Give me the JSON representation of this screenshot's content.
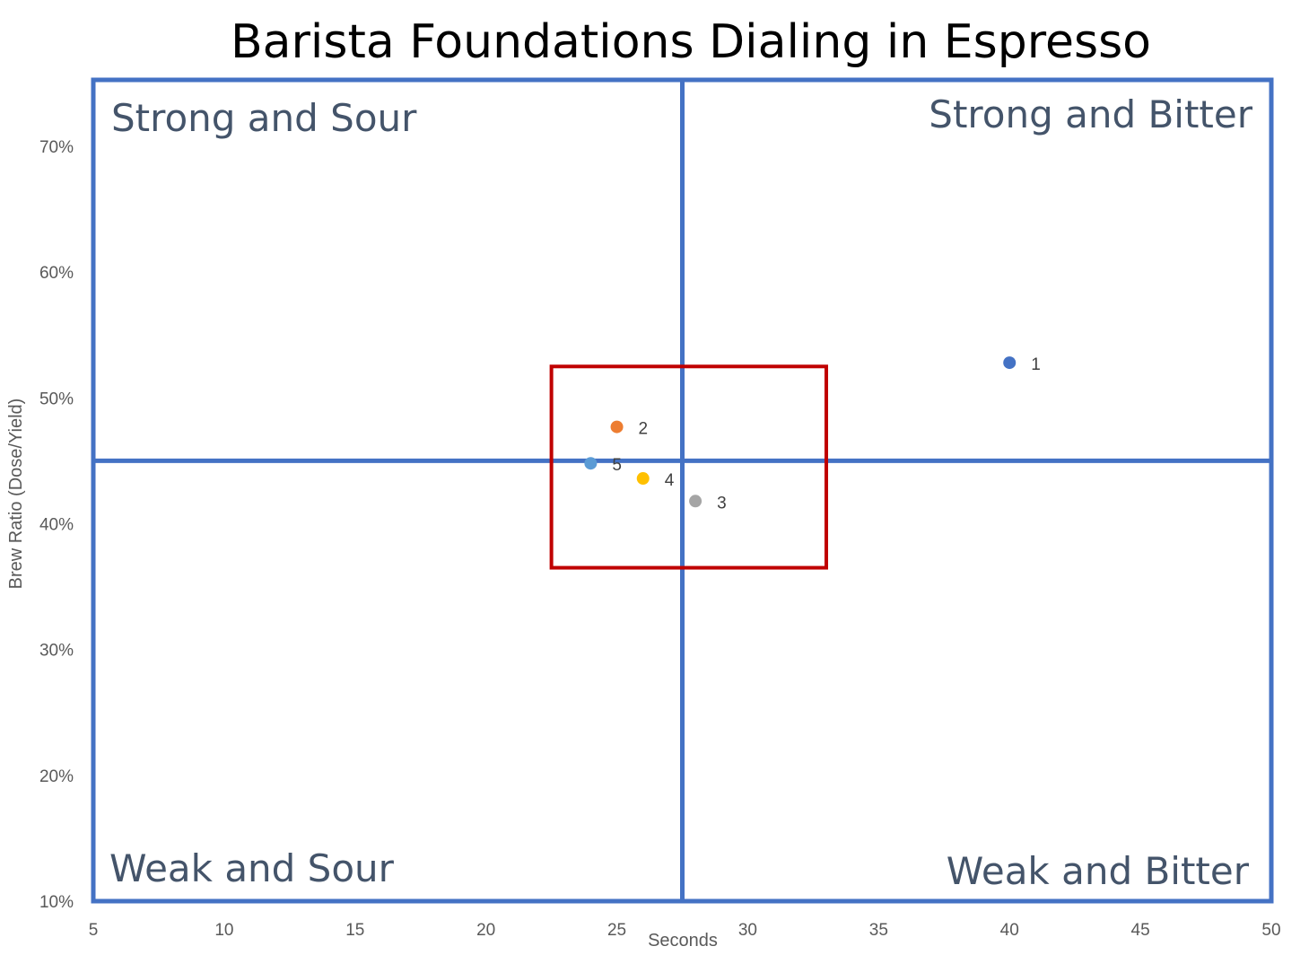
{
  "chart_data": {
    "type": "scatter",
    "title": "Barista Foundations Dialing in Espresso",
    "xlabel": "Seconds",
    "ylabel": "Brew Ratio (Dose/Yield)",
    "xlim": [
      5,
      50
    ],
    "ylim": [
      10,
      75
    ],
    "x_ticks": [
      5,
      10,
      15,
      20,
      25,
      30,
      35,
      40,
      45,
      50
    ],
    "x_tick_labels": [
      "5",
      "10",
      "15",
      "20",
      "25",
      "30",
      "35",
      "40",
      "45",
      "50"
    ],
    "y_ticks": [
      10,
      20,
      30,
      40,
      50,
      60,
      70
    ],
    "y_tick_labels": [
      "10%",
      "20%",
      "30%",
      "40%",
      "50%",
      "60%",
      "70%"
    ],
    "grid": false,
    "quadrants": {
      "x_split": 27.5,
      "y_split": 45,
      "line_color": "#4472c4",
      "labels": {
        "top_left": "Strong and Sour",
        "top_right": "Strong and Bitter",
        "bottom_left": "Weak and Sour",
        "bottom_right": "Weak and Bitter"
      }
    },
    "target_zone": {
      "x": [
        22.5,
        33
      ],
      "y": [
        36.5,
        52.5
      ],
      "color": "#c00000"
    },
    "points": [
      {
        "label": "1",
        "x": 40,
        "y": 52.8,
        "color": "#4472c4"
      },
      {
        "label": "2",
        "x": 25,
        "y": 47.7,
        "color": "#ed7d31"
      },
      {
        "label": "3",
        "x": 28,
        "y": 41.8,
        "color": "#a5a5a5"
      },
      {
        "label": "4",
        "x": 26,
        "y": 43.6,
        "color": "#ffc000"
      },
      {
        "label": "5",
        "x": 24,
        "y": 44.8,
        "color": "#5b9bd5"
      }
    ]
  }
}
